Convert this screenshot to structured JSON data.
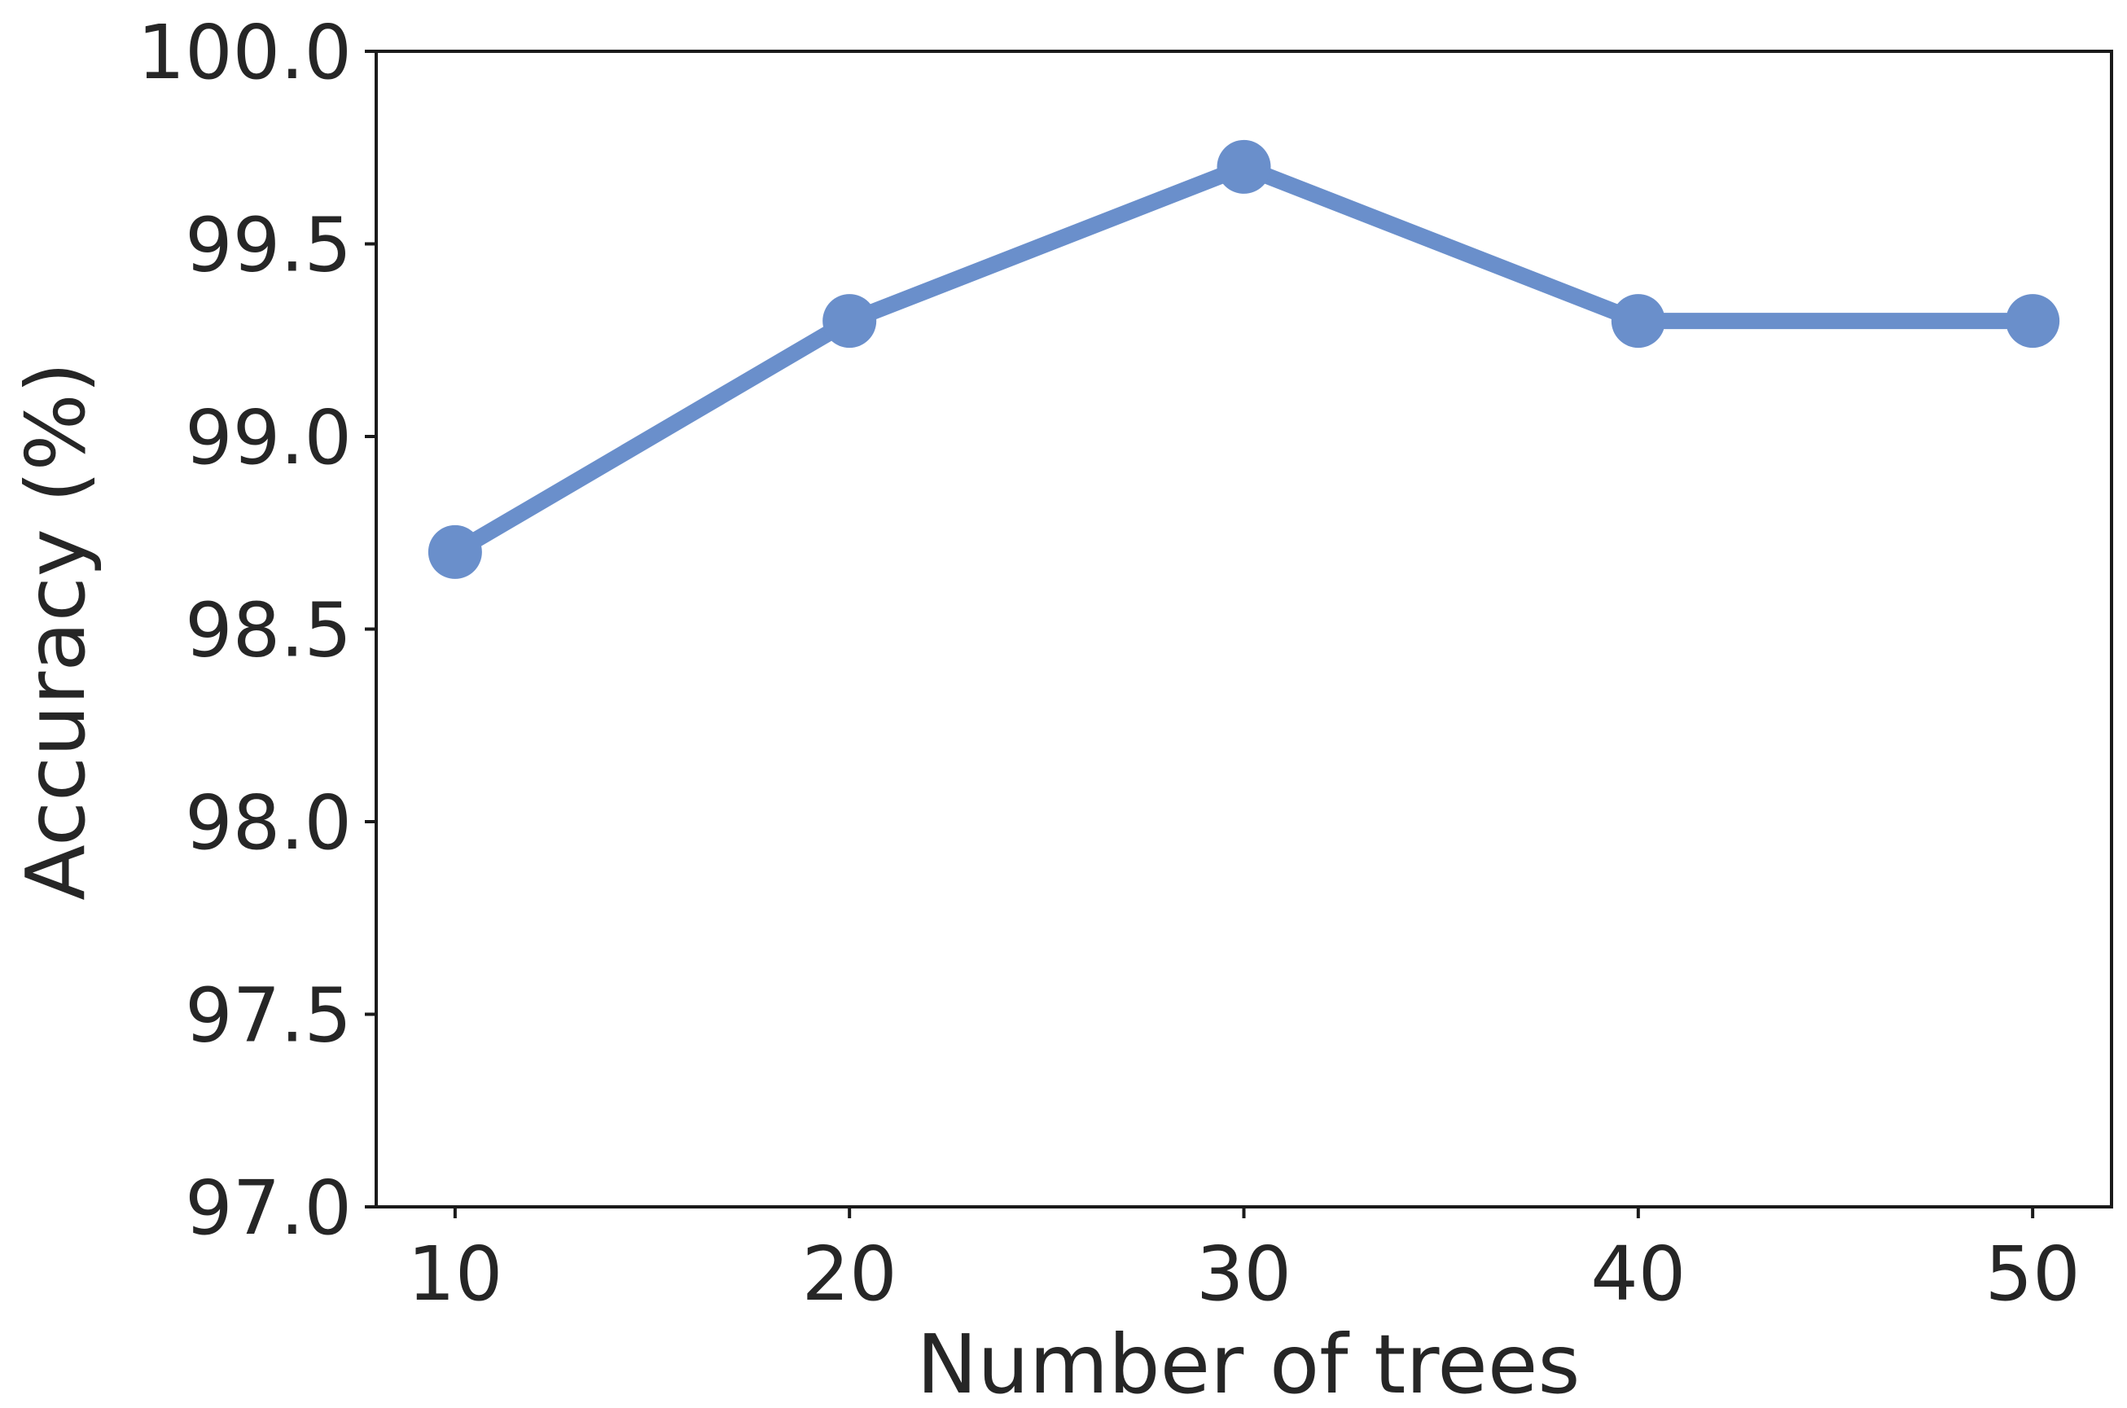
{
  "chart_data": {
    "type": "line",
    "xlabel": "Number of trees",
    "ylabel": "Accuracy (%)",
    "x": [
      10,
      20,
      30,
      40,
      50
    ],
    "xticks": [
      "10",
      "20",
      "30",
      "40",
      "50"
    ],
    "yticks": [
      "97.0",
      "97.5",
      "98.0",
      "98.5",
      "99.0",
      "99.5",
      "100.0"
    ],
    "xlim": [
      8,
      52
    ],
    "ylim": [
      97.0,
      100.0
    ],
    "grid": false,
    "series": [
      {
        "values": [
          98.7,
          99.3,
          99.7,
          99.3,
          99.3
        ],
        "color": "#6a8fcb",
        "marker": "circle"
      }
    ]
  }
}
